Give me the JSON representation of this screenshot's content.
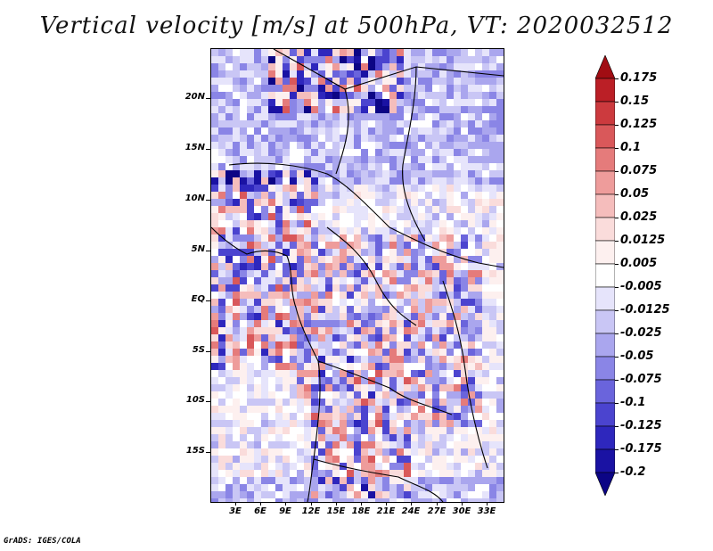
{
  "title": "Vertical velocity [m/s] at 500hPa, VT: 2020032512",
  "credit": "GrADS: IGES/COLA",
  "lat_labels": [
    "20N",
    "15N",
    "10N",
    "5N",
    "EQ",
    "5S",
    "10S",
    "15S"
  ],
  "lon_labels": [
    "3E",
    "6E",
    "9E",
    "12E",
    "15E",
    "18E",
    "21E",
    "24E",
    "27E",
    "30E",
    "33E"
  ],
  "colorbar": {
    "labels": [
      "0.175",
      "0.15",
      "0.125",
      "0.1",
      "0.075",
      "0.05",
      "0.025",
      "0.0125",
      "0.005",
      "-0.005",
      "-0.0125",
      "-0.025",
      "-0.05",
      "-0.075",
      "-0.1",
      "-0.125",
      "-0.175",
      "-0.2"
    ],
    "colors": [
      "#a10d13",
      "#bb1f26",
      "#cc3a3e",
      "#d9585a",
      "#e57b7b",
      "#ee9c9b",
      "#f5bdbc",
      "#fadcdb",
      "#fdf0ef",
      "#ffffff",
      "#e6e4fb",
      "#c9c6f5",
      "#aaa6ee",
      "#8a85e6",
      "#6a64dc",
      "#4b44cf",
      "#2e27bd",
      "#1a12a3",
      "#0c0585"
    ]
  },
  "map": {
    "background": "#dcdcf5",
    "positive_color": "#cc3a3e",
    "negative_color": "#4b44cf"
  }
}
